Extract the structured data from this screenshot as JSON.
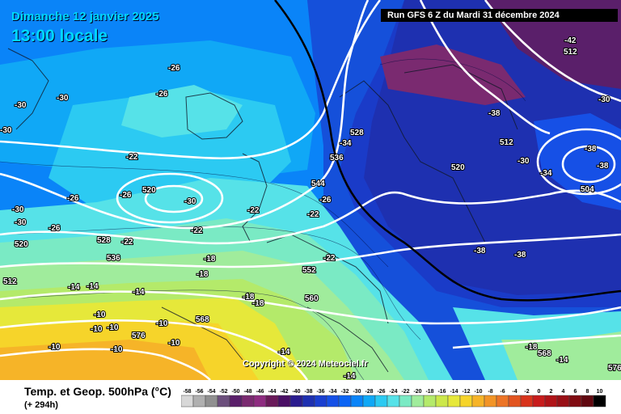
{
  "header": {
    "date": "Dimanche 12 janvier 2025",
    "time": "13:00 locale",
    "run": "Run GFS 6 Z du Mardi 31 décembre 2024"
  },
  "copyright": "Copyright © 2024 Meteociel.fr",
  "footer": {
    "param": "Temp. et Geop. 500hPa (°C)",
    "lead": "(+ 294h)"
  },
  "legend": {
    "values": [
      "-58",
      "-56",
      "-54",
      "-52",
      "-50",
      "-48",
      "-46",
      "-44",
      "-42",
      "-40",
      "-38",
      "-36",
      "-34",
      "-32",
      "-30",
      "-28",
      "-26",
      "-24",
      "-22",
      "-20",
      "-18",
      "-16",
      "-14",
      "-12",
      "-10",
      "-8",
      "-6",
      "-4",
      "-2",
      "0",
      "2",
      "4",
      "6",
      "8",
      "10"
    ],
    "colors": [
      "#d8d8d8",
      "#b0b0b0",
      "#909090",
      "#6c4f7c",
      "#5a1f6a",
      "#7a2a70",
      "#8e2c80",
      "#6a1a5a",
      "#4a0f64",
      "#2a1c8e",
      "#1e30b0",
      "#1a3fd0",
      "#1650e6",
      "#0c64f4",
      "#0a84f8",
      "#10a8f6",
      "#2ccaf2",
      "#56e2e8",
      "#7aeac4",
      "#a0ec9c",
      "#b4ea6a",
      "#cce84a",
      "#e6e83a",
      "#f6d42a",
      "#f6b428",
      "#f29426",
      "#ec7426",
      "#e25420",
      "#d8341c",
      "#c81c1c",
      "#b01418",
      "#981016",
      "#800c12",
      "#600810",
      "#000000"
    ]
  },
  "map": {
    "temperature_labels": [
      {
        "text": "-30",
        "key": "w1"
      },
      {
        "text": "-30",
        "key": "w2"
      },
      {
        "text": "-30",
        "key": "w3"
      },
      {
        "text": "-30",
        "key": "w4"
      },
      {
        "text": "-30",
        "key": "w5"
      },
      {
        "text": "-26",
        "key": "c1"
      },
      {
        "text": "-26",
        "key": "c2"
      },
      {
        "text": "-26",
        "key": "c3"
      },
      {
        "text": "-26",
        "key": "c4"
      },
      {
        "text": "-26",
        "key": "c5"
      },
      {
        "text": "-22",
        "key": "c6"
      },
      {
        "text": "-22",
        "key": "c7"
      },
      {
        "text": "-22",
        "key": "c8"
      },
      {
        "text": "-22",
        "key": "c9"
      },
      {
        "text": "-22",
        "key": "c10"
      },
      {
        "text": "-22",
        "key": "c11"
      },
      {
        "text": "-30",
        "key": "c12"
      },
      {
        "text": "-18",
        "key": "s1"
      },
      {
        "text": "-18",
        "key": "s2"
      },
      {
        "text": "-18",
        "key": "s3"
      },
      {
        "text": "-18",
        "key": "s4"
      },
      {
        "text": "-14",
        "key": "s5"
      },
      {
        "text": "-14",
        "key": "s6"
      },
      {
        "text": "-14",
        "key": "s7"
      },
      {
        "text": "-14",
        "key": "s8"
      },
      {
        "text": "-14",
        "key": "s9"
      },
      {
        "text": "-10",
        "key": "s10"
      },
      {
        "text": "-10",
        "key": "s11"
      },
      {
        "text": "-10",
        "key": "s12"
      },
      {
        "text": "-10",
        "key": "s13"
      },
      {
        "text": "-10",
        "key": "s14"
      },
      {
        "text": "-10",
        "key": "s15"
      },
      {
        "text": "-10",
        "key": "s16"
      },
      {
        "text": "-34",
        "key": "e1"
      },
      {
        "text": "-34",
        "key": "e2"
      },
      {
        "text": "-38",
        "key": "e3"
      },
      {
        "text": "-38",
        "key": "e4"
      },
      {
        "text": "-38",
        "key": "e5"
      },
      {
        "text": "-38",
        "key": "e6"
      },
      {
        "text": "-30",
        "key": "e7"
      },
      {
        "text": "-30",
        "key": "e8"
      },
      {
        "text": "-42",
        "key": "e9"
      },
      {
        "text": "-38",
        "key": "e10"
      },
      {
        "text": "-26",
        "key": "e11"
      },
      {
        "text": "-18",
        "key": "e12"
      },
      {
        "text": "-14",
        "key": "e13"
      }
    ],
    "geopotential_labels": [
      {
        "text": "520",
        "key": "g1"
      },
      {
        "text": "528",
        "key": "g2"
      },
      {
        "text": "536",
        "key": "g3"
      },
      {
        "text": "544",
        "key": "g4"
      },
      {
        "text": "552",
        "key": "g5"
      },
      {
        "text": "560",
        "key": "g6"
      },
      {
        "text": "568",
        "key": "g7"
      },
      {
        "text": "576",
        "key": "g8"
      },
      {
        "text": "520",
        "key": "g9"
      },
      {
        "text": "528",
        "key": "g10"
      },
      {
        "text": "536",
        "key": "g11"
      },
      {
        "text": "512",
        "key": "g12"
      },
      {
        "text": "504",
        "key": "g13"
      },
      {
        "text": "512",
        "key": "g14"
      },
      {
        "text": "520",
        "key": "g15"
      },
      {
        "text": "568",
        "key": "g16"
      },
      {
        "text": "576",
        "key": "g17"
      },
      {
        "text": "512",
        "key": "g18"
      }
    ]
  }
}
